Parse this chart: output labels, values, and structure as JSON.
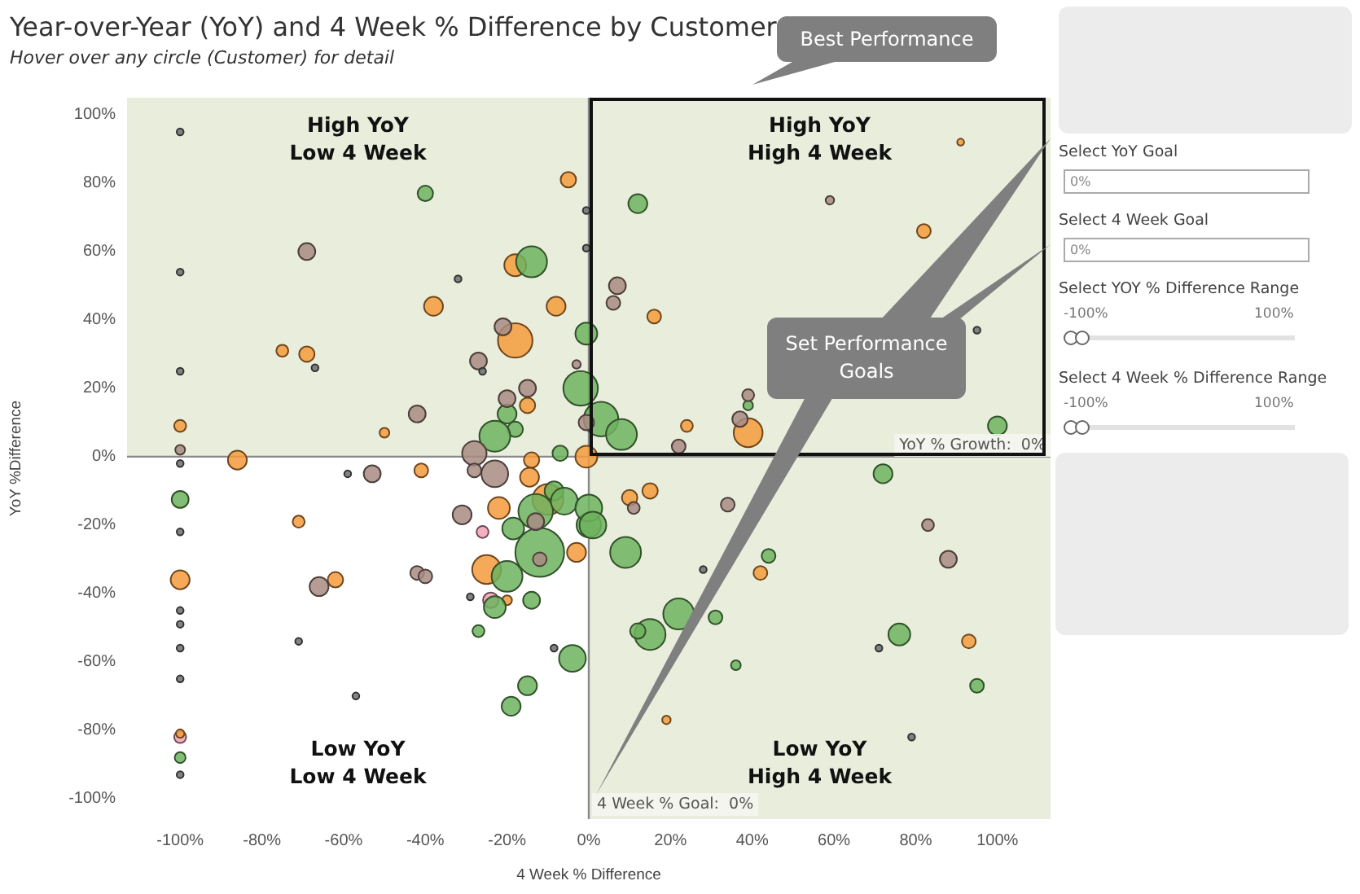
{
  "chart_data": {
    "type": "bubble",
    "title": "Year-over-Year (YoY) and 4 Week % Difference by Customer",
    "subtitle": "Hover over any circle (Customer) for detail",
    "xlabel": "4 Week % Difference",
    "ylabel": "YoY %Difference",
    "xlim": [
      -113,
      113
    ],
    "ylim": [
      -106,
      105
    ],
    "xticks": [
      {
        "value": -100,
        "label": "-100%"
      },
      {
        "value": -80,
        "label": "-80%"
      },
      {
        "value": -60,
        "label": "-60%"
      },
      {
        "value": -40,
        "label": "-40%"
      },
      {
        "value": -20,
        "label": "-20%"
      },
      {
        "value": 0,
        "label": "0%"
      },
      {
        "value": 20,
        "label": "20%"
      },
      {
        "value": 40,
        "label": "40%"
      },
      {
        "value": 60,
        "label": "60%"
      },
      {
        "value": 80,
        "label": "80%"
      },
      {
        "value": 100,
        "label": "100%"
      }
    ],
    "yticks": [
      {
        "value": -100,
        "label": "-100%"
      },
      {
        "value": -80,
        "label": "-80%"
      },
      {
        "value": -60,
        "label": "-60%"
      },
      {
        "value": -40,
        "label": "-40%"
      },
      {
        "value": -20,
        "label": "-20%"
      },
      {
        "value": 0,
        "label": "0%"
      },
      {
        "value": 20,
        "label": "20%"
      },
      {
        "value": 40,
        "label": "40%"
      },
      {
        "value": 60,
        "label": "60%"
      },
      {
        "value": 80,
        "label": "80%"
      },
      {
        "value": 100,
        "label": "100%"
      }
    ],
    "bands": [
      {
        "axis": "y",
        "from": 0,
        "to": 105,
        "color": "#e8eddc"
      },
      {
        "axis": "x",
        "from": 0,
        "to": 113,
        "color": "#e8eddc"
      }
    ],
    "ref_lines": [
      {
        "axis": "y",
        "value": 0,
        "label": "YoY % Growth:  0%",
        "color": "#8a8a8a"
      },
      {
        "axis": "x",
        "value": 0,
        "label": "4 Week % Goal:  0%",
        "color": "#8a8a8a"
      }
    ],
    "annotations": [
      "High YoY\nLow 4 Week",
      "High YoY\nHigh 4 Week",
      "Low YoY\nLow 4 Week",
      "Low YoY\nHigh 4 Week",
      "Best Performance",
      "Set Performance\nGoals",
      "Select YoY Goal",
      "0%",
      "Select 4 Week Goal",
      "0%",
      "Select YOY % Difference Range",
      "-100%",
      "100%",
      "Select 4 Week % Difference Range",
      "-100%",
      "100%"
    ],
    "series": [
      {
        "color": "#6e6e6e",
        "x": [
          -100,
          -100,
          -100,
          -32,
          -67,
          -26,
          -0.6,
          -0.6,
          95,
          -100,
          -59,
          -100,
          -100,
          -100,
          -100,
          -100,
          -71,
          -57,
          -29,
          -8.5,
          28,
          71,
          79,
          -100
        ],
        "values": [
          95,
          54,
          25,
          52,
          26,
          25,
          72,
          61,
          37,
          -2,
          -5,
          -22,
          -45,
          -49,
          -56,
          -65,
          -54,
          -70,
          -41,
          -56,
          -33,
          -56,
          -82,
          -93
        ],
        "sizes": [
          0.02,
          0.02,
          0.02,
          0.02,
          0.02,
          0.02,
          0.02,
          0.02,
          0.02,
          0.02,
          0.02,
          0.02,
          0.02,
          0.02,
          0.02,
          0.02,
          0.02,
          0.02,
          0.02,
          0.02,
          0.02,
          0.02,
          0.02,
          0.02
        ]
      },
      {
        "color": "#a88b82",
        "x": [
          -69,
          -21,
          -27,
          -15,
          -20,
          -42,
          -3,
          -28,
          -100,
          -0.6,
          7,
          6,
          59,
          39,
          37,
          22,
          -53,
          -28,
          -23,
          -31,
          -13,
          -66,
          -42,
          -40,
          -12,
          11,
          34,
          83,
          88
        ],
        "values": [
          60,
          38,
          28,
          20,
          17,
          12.5,
          27,
          1,
          2,
          10,
          50,
          45,
          75,
          18,
          11,
          3,
          -5,
          -4,
          -5,
          -17,
          -19,
          -38,
          -34,
          -35,
          -30,
          -15,
          -14,
          -20,
          -30
        ],
        "sizes": [
          0.12,
          0.12,
          0.12,
          0.12,
          0.12,
          0.12,
          0.03,
          0.25,
          0.04,
          0.1,
          0.12,
          0.08,
          0.03,
          0.06,
          0.1,
          0.08,
          0.12,
          0.08,
          0.3,
          0.15,
          0.12,
          0.15,
          0.08,
          0.08,
          0.08,
          0.06,
          0.08,
          0.06,
          0.12
        ]
      },
      {
        "color": "#6db35e",
        "x": [
          -40,
          -14,
          -0.6,
          -2,
          -20,
          -18,
          -23,
          -7,
          12,
          3,
          8,
          100,
          39,
          -100,
          -8.5,
          -13,
          -6,
          0,
          -18.5,
          -12,
          -20,
          -23,
          -14,
          -27,
          -4,
          -15,
          -19,
          -100,
          72,
          0,
          1,
          9,
          44,
          22,
          15,
          12,
          31,
          36,
          76,
          95
        ],
        "values": [
          77,
          57,
          36,
          20,
          12.5,
          8,
          6,
          1,
          74,
          11,
          6.5,
          9,
          15,
          -12.5,
          -10,
          -16,
          -13,
          -20,
          -21,
          -28,
          -35,
          -44,
          -42,
          -51,
          -59,
          -67,
          -73,
          -88,
          -5,
          -15,
          -20,
          -28,
          -29,
          -46,
          -52,
          -51,
          -47,
          -61,
          -52,
          -67
        ],
        "sizes": [
          0.1,
          0.4,
          0.2,
          0.5,
          0.15,
          0.1,
          0.4,
          0.1,
          0.15,
          0.5,
          0.4,
          0.15,
          0.04,
          0.12,
          0.15,
          0.5,
          0.3,
          0.25,
          0.2,
          1,
          0.4,
          0.2,
          0.12,
          0.06,
          0.3,
          0.15,
          0.15,
          0.05,
          0.15,
          0.3,
          0.3,
          0.4,
          0.08,
          0.4,
          0.4,
          0.1,
          0.08,
          0.04,
          0.2,
          0.08
        ]
      },
      {
        "color": "#f59b3c",
        "x": [
          -5,
          91,
          82,
          -18,
          -38,
          -8,
          -18,
          -69,
          -75,
          -100,
          -50,
          -86,
          -15,
          -0.6,
          -14,
          -41,
          -14.5,
          -22,
          -10,
          -71,
          -62,
          -100,
          -25,
          -3,
          -20,
          -100,
          10,
          15,
          42,
          93,
          19,
          16,
          24,
          39
        ],
        "values": [
          81,
          92,
          66,
          56,
          44,
          44,
          34,
          30,
          31,
          9,
          7,
          -1,
          15,
          0,
          -1,
          -4,
          -6,
          -15,
          -12.5,
          -19,
          -36,
          -36,
          -33,
          -28,
          -42,
          -81,
          -12,
          -10,
          -34,
          -54,
          -77,
          41,
          9,
          7
        ],
        "sizes": [
          0.1,
          0.02,
          0.08,
          0.2,
          0.15,
          0.15,
          0.5,
          0.1,
          0.06,
          0.06,
          0.04,
          0.15,
          0.1,
          0.2,
          0.1,
          0.08,
          0.15,
          0.2,
          0.4,
          0.06,
          0.1,
          0.15,
          0.35,
          0.15,
          0.04,
          0.03,
          0.1,
          0.1,
          0.08,
          0.08,
          0.03,
          0.08,
          0.06,
          0.35
        ]
      },
      {
        "color": "#f2a2b6",
        "x": [
          -26,
          -24,
          -100
        ],
        "values": [
          -22,
          -42,
          -82
        ],
        "sizes": [
          0.06,
          0.1,
          0.06
        ]
      }
    ]
  }
}
